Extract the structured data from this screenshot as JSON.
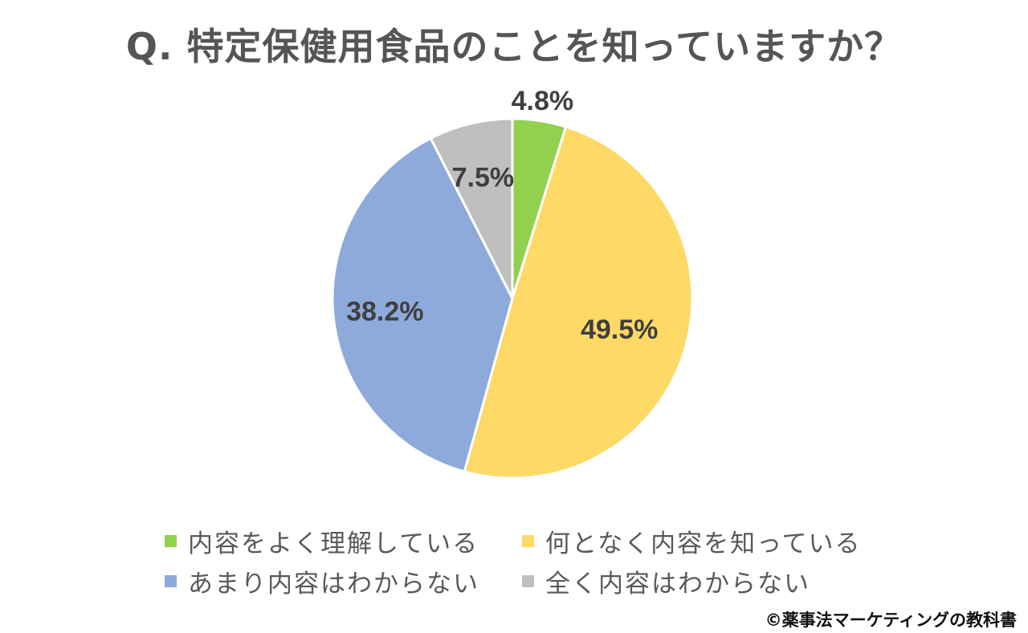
{
  "chart_data": {
    "type": "pie",
    "title": "Q. 特定保健用食品のことを知っていますか？",
    "slices": [
      {
        "label": "内容をよく理解している",
        "value": 4.8,
        "display": "4.8%",
        "color": "#92d050"
      },
      {
        "label": "何となく内容を知っている",
        "value": 49.5,
        "display": "49.5%",
        "color": "#ffd966"
      },
      {
        "label": "あまり内容はわからない",
        "value": 38.2,
        "display": "38.2%",
        "color": "#8eaadb"
      },
      {
        "label": "全く内容はわからない",
        "value": 7.5,
        "display": "7.5%",
        "color": "#bfbfbf"
      }
    ],
    "start_angle": "12 o'clock",
    "direction": "clockwise",
    "legend_placement": "bottom"
  },
  "copyright": "©薬事法マーケティングの教科書"
}
